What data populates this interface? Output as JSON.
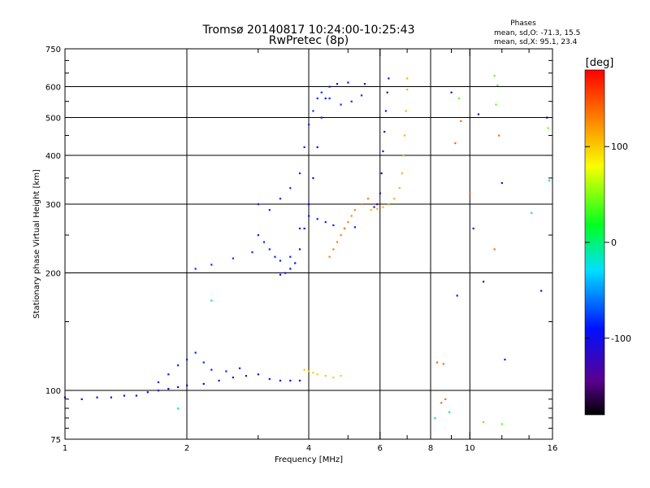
{
  "header": {
    "title_line1": "Tromsø 20140817 10:24:00-10:25:43",
    "title_line2": "RwPretec (8p)"
  },
  "phases_box": {
    "heading": "Phases",
    "line_o": "mean, sd,O: -71.3, 15.5",
    "line_x": "mean, sd,X:  95.1, 23.4"
  },
  "colorbar": {
    "unit_label": "[deg]",
    "tick_labels": [
      "100",
      "0",
      "-100"
    ],
    "range": [
      -180,
      180
    ]
  },
  "chart_data": {
    "type": "scatter",
    "xlabel": "Frequency [MHz]",
    "ylabel": "Stationary phase Virtual Height [km]",
    "xscale": "log",
    "yscale": "log",
    "xlim": [
      1,
      16
    ],
    "ylim": [
      75,
      750
    ],
    "x_ticks": [
      1,
      2,
      4,
      6,
      8,
      10,
      16
    ],
    "x_tick_labels": [
      "1",
      "2",
      "4",
      "6",
      "8",
      "10",
      "16"
    ],
    "y_ticks": [
      75,
      100,
      200,
      300,
      400,
      500,
      600,
      750
    ],
    "y_tick_labels": [
      "75",
      "100",
      "200",
      "300",
      "400",
      "500",
      "600",
      "750"
    ],
    "grid_x": [
      2,
      4,
      6,
      8,
      10
    ],
    "grid_y": [
      100,
      200,
      300,
      400,
      500,
      600
    ],
    "traces": [
      {
        "phase": -92,
        "points": [
          [
            1.0,
            96
          ],
          [
            1.1,
            95
          ],
          [
            1.2,
            96
          ],
          [
            1.3,
            96
          ],
          [
            1.4,
            97
          ],
          [
            1.5,
            97
          ],
          [
            1.6,
            99
          ],
          [
            1.7,
            100
          ],
          [
            1.8,
            101
          ],
          [
            1.9,
            102
          ],
          [
            2.0,
            103
          ],
          [
            2.2,
            104
          ],
          [
            2.4,
            106
          ],
          [
            2.6,
            108
          ],
          [
            2.8,
            109
          ],
          [
            3.0,
            110
          ],
          [
            3.2,
            107
          ],
          [
            3.4,
            106
          ],
          [
            3.6,
            106
          ],
          [
            3.8,
            106
          ]
        ]
      },
      {
        "phase": -85,
        "points": [
          [
            1.7,
            105
          ],
          [
            1.8,
            110
          ],
          [
            1.9,
            116
          ],
          [
            2.0,
            120
          ],
          [
            2.1,
            125
          ],
          [
            2.2,
            118
          ],
          [
            2.3,
            113
          ],
          [
            2.5,
            112
          ],
          [
            2.7,
            114
          ]
        ]
      },
      {
        "phase": 100,
        "points": [
          [
            3.9,
            113
          ],
          [
            4.0,
            112
          ],
          [
            4.1,
            111
          ],
          [
            4.2,
            110
          ],
          [
            4.4,
            109
          ],
          [
            4.6,
            108
          ],
          [
            4.8,
            109
          ]
        ]
      },
      {
        "phase": -90,
        "points": [
          [
            3.4,
            198
          ],
          [
            3.5,
            200
          ],
          [
            3.6,
            205
          ],
          [
            3.7,
            212
          ],
          [
            3.8,
            230
          ],
          [
            3.9,
            260
          ],
          [
            4.0,
            300
          ],
          [
            4.1,
            350
          ],
          [
            4.2,
            420
          ],
          [
            4.3,
            500
          ],
          [
            4.4,
            560
          ],
          [
            4.5,
            600
          ],
          [
            4.7,
            610
          ],
          [
            5.0,
            615
          ],
          [
            5.5,
            610
          ]
        ]
      },
      {
        "phase": -85,
        "points": [
          [
            3.0,
            250
          ],
          [
            3.1,
            240
          ],
          [
            3.2,
            230
          ],
          [
            3.3,
            220
          ],
          [
            3.4,
            215
          ],
          [
            3.6,
            220
          ],
          [
            3.8,
            260
          ],
          [
            4.0,
            280
          ],
          [
            4.2,
            275
          ],
          [
            4.4,
            270
          ],
          [
            4.6,
            265
          ],
          [
            4.9,
            260
          ],
          [
            5.2,
            262
          ]
        ]
      },
      {
        "phase": -82,
        "points": [
          [
            3.0,
            300
          ],
          [
            3.2,
            290
          ],
          [
            3.4,
            310
          ],
          [
            3.6,
            330
          ],
          [
            3.8,
            360
          ],
          [
            3.9,
            420
          ],
          [
            4.0,
            480
          ],
          [
            4.1,
            520
          ],
          [
            4.2,
            560
          ],
          [
            4.3,
            580
          ],
          [
            4.5,
            560
          ],
          [
            4.8,
            540
          ],
          [
            5.1,
            550
          ],
          [
            5.4,
            570
          ]
        ]
      },
      {
        "phase": 130,
        "points": [
          [
            4.5,
            220
          ],
          [
            4.6,
            230
          ],
          [
            4.7,
            240
          ],
          [
            4.8,
            250
          ],
          [
            4.9,
            260
          ],
          [
            5.0,
            270
          ],
          [
            5.1,
            280
          ],
          [
            5.2,
            290
          ],
          [
            5.4,
            300
          ],
          [
            5.6,
            310
          ]
        ]
      },
      {
        "phase": -120,
        "points": [
          [
            5.8,
            295
          ],
          [
            5.9,
            300
          ],
          [
            6.0,
            320
          ],
          [
            6.05,
            360
          ],
          [
            6.1,
            410
          ],
          [
            6.15,
            460
          ],
          [
            6.2,
            520
          ],
          [
            6.25,
            580
          ],
          [
            6.3,
            630
          ]
        ]
      },
      {
        "phase": 110,
        "points": [
          [
            5.7,
            290
          ],
          [
            5.9,
            292
          ],
          [
            6.1,
            295
          ],
          [
            6.3,
            300
          ],
          [
            6.5,
            310
          ],
          [
            6.7,
            330
          ],
          [
            6.8,
            360
          ],
          [
            6.85,
            400
          ],
          [
            6.9,
            450
          ],
          [
            6.95,
            520
          ],
          [
            7.0,
            590
          ],
          [
            7.0,
            630
          ]
        ]
      },
      {
        "phase": -80,
        "points": [
          [
            2.1,
            205
          ],
          [
            2.3,
            210
          ],
          [
            2.6,
            218
          ],
          [
            2.9,
            226
          ]
        ]
      },
      {
        "phase": 140,
        "points": [
          [
            8.3,
            118
          ],
          [
            8.6,
            117
          ],
          [
            8.5,
            93
          ],
          [
            8.7,
            95
          ],
          [
            9.5,
            490
          ],
          [
            10.0,
            320
          ],
          [
            9.2,
            430
          ],
          [
            11.5,
            230
          ],
          [
            11.8,
            450
          ]
        ]
      },
      {
        "phase": -120,
        "points": [
          [
            9.0,
            580
          ],
          [
            10.5,
            510
          ],
          [
            10.2,
            260
          ],
          [
            10.8,
            190
          ],
          [
            12.0,
            340
          ],
          [
            12.2,
            120
          ],
          [
            15.0,
            180
          ],
          [
            15.5,
            500
          ],
          [
            9.3,
            175
          ]
        ]
      },
      {
        "phase": 40,
        "points": [
          [
            11.5,
            640
          ],
          [
            11.7,
            605
          ],
          [
            11.6,
            540
          ],
          [
            12.0,
            82
          ],
          [
            10.8,
            83
          ],
          [
            9.4,
            560
          ],
          [
            15.6,
            470
          ]
        ]
      },
      {
        "phase": -5,
        "points": [
          [
            8.2,
            85
          ],
          [
            8.9,
            88
          ],
          [
            15.7,
            345
          ],
          [
            14.2,
            285
          ],
          [
            2.3,
            170
          ],
          [
            1.9,
            90
          ]
        ]
      }
    ]
  }
}
